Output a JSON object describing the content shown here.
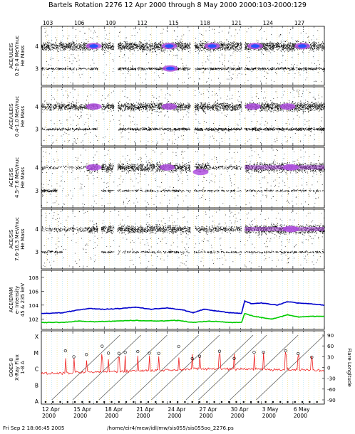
{
  "header": {
    "title": "Bartels Rotation 2276    12 Apr 2000 through 8 May 2000    2000:103-2000:129"
  },
  "footer": {
    "timestamp": "Fri Sep  2 18:06:45 2005",
    "path": "/home/eir4/mew/idl/mw/sis055/sis055oo_2276.ps"
  },
  "colors": {
    "background": "#ffffff",
    "dots": "#000000",
    "mass_band_4": "#b050e0",
    "mass_band_core": "#2850ff",
    "epam_upper": "#0000cc",
    "epam_lower": "#00cc00",
    "goes_flux": "#ee2222",
    "grid_dotted": "#e8d870",
    "grid_day": "#a8e0f0"
  },
  "chart_data": [
    {
      "type": "scatter",
      "ylabel": "ACE/ULEIS\n0.2-0.4 MeV/nuc\nHe Mass",
      "yticks": [
        "4",
        "3"
      ],
      "doy_labels": [
        "103",
        "106",
        "109",
        "112",
        "115",
        "118",
        "121",
        "124",
        "127"
      ],
      "gaps_doy": [
        [
          108.35,
          108.7
        ],
        [
          109.9,
          110.25
        ],
        [
          117.2,
          117.55
        ],
        [
          122.1,
          122.35
        ]
      ],
      "bands": [
        {
          "mass": 4.0,
          "segments": [
            [
              103,
              108.4,
              0.9
            ],
            [
              108.7,
              109.9,
              0.9
            ],
            [
              110.3,
              117.2,
              1.0
            ],
            [
              117.6,
              122.1,
              1.0
            ],
            [
              122.4,
              130,
              1.0
            ]
          ]
        },
        {
          "mass": 3.0,
          "segments": [
            [
              103,
              108.4,
              0.25
            ],
            [
              110.3,
              117.2,
              0.4
            ],
            [
              117.6,
              130,
              0.35
            ]
          ]
        }
      ],
      "blobs_doy": [
        [
          108.0,
          4.0
        ],
        [
          115.2,
          4.0
        ],
        [
          115.3,
          3.0
        ],
        [
          119.3,
          4.0
        ],
        [
          123.4,
          4.0
        ],
        [
          127.9,
          4.0
        ]
      ]
    },
    {
      "type": "scatter",
      "ylabel": "ACE/ULEIS\n0.4-1.0 MeV/nuc\nHe Mass",
      "yticks": [
        "4",
        "3"
      ],
      "bands": [
        {
          "mass": 4.0,
          "segments": [
            [
              103,
              108.4,
              0.7
            ],
            [
              108.7,
              109.9,
              0.7
            ],
            [
              110.3,
              117.2,
              0.9
            ],
            [
              117.6,
              122.1,
              0.9
            ],
            [
              122.4,
              130,
              1.0
            ]
          ]
        },
        {
          "mass": 3.0,
          "segments": [
            [
              103,
              108.4,
              0.3
            ],
            [
              110.3,
              117.2,
              0.4
            ],
            [
              117.6,
              130,
              0.5
            ]
          ]
        }
      ],
      "blobs_doy": [
        [
          108.0,
          4.0
        ],
        [
          115.2,
          4.0
        ],
        [
          123.2,
          4.0
        ],
        [
          126.5,
          4.0
        ]
      ]
    },
    {
      "type": "scatter",
      "ylabel": "ACE/SIS\n4.5-7.6 MeV/nuc\nHe Mass",
      "yticks": [
        "4",
        "3"
      ],
      "bands": [
        {
          "mass": 4.0,
          "segments": [
            [
              103,
              107.3,
              0.2
            ],
            [
              107.3,
              117.2,
              0.9
            ],
            [
              117.6,
              119.0,
              0.9
            ],
            [
              119.0,
              122.1,
              0.3
            ],
            [
              122.4,
              130,
              1.0
            ]
          ]
        },
        {
          "mass": 3.0,
          "segments": [
            [
              103,
              104.5,
              0.5
            ],
            [
              108.5,
              130,
              0.2
            ]
          ]
        }
      ],
      "blobs_doy": [
        [
          108.0,
          4.0
        ],
        [
          115.0,
          4.0
        ],
        [
          118.2,
          3.8
        ],
        [
          126.8,
          4.0
        ]
      ]
    },
    {
      "type": "scatter",
      "ylabel": "ACE/SIS\n7.6-16.3 MeV/nuc\nHe Mass",
      "yticks": [
        "4",
        "3"
      ],
      "bands": [
        {
          "mass": 4.0,
          "segments": [
            [
              103,
              107.3,
              0.3
            ],
            [
              107.3,
              117.2,
              0.8
            ],
            [
              117.6,
              122.1,
              0.5
            ],
            [
              122.4,
              130,
              1.0
            ]
          ]
        },
        {
          "mass": 3.0,
          "segments": [
            [
              103,
              105.0,
              0.3
            ],
            [
              108.5,
              130,
              0.2
            ]
          ]
        }
      ],
      "blobs_doy": [
        [
          126.8,
          4.0
        ]
      ]
    },
    {
      "type": "line",
      "ylabel": "ACE/EPAM\ne- Intensity\n45 & 235 keV",
      "ytick_labels": [
        "10^8",
        "10^6",
        "10^4",
        "10^2"
      ],
      "ylim_log10": [
        0.5,
        9.0
      ],
      "series_upper_log10": [
        [
          103.0,
          2.8
        ],
        [
          105.0,
          2.9
        ],
        [
          106.5,
          3.3
        ],
        [
          107.5,
          3.5
        ],
        [
          109.0,
          3.4
        ],
        [
          110.5,
          3.5
        ],
        [
          112.0,
          3.7
        ],
        [
          113.5,
          3.4
        ],
        [
          115.0,
          3.6
        ],
        [
          116.5,
          3.3
        ],
        [
          117.5,
          2.9
        ],
        [
          118.5,
          3.4
        ],
        [
          119.5,
          3.2
        ],
        [
          121.0,
          2.9
        ],
        [
          122.1,
          2.8
        ],
        [
          122.4,
          4.6
        ],
        [
          123.0,
          4.2
        ],
        [
          124.0,
          4.3
        ],
        [
          125.5,
          4.0
        ],
        [
          126.5,
          4.5
        ],
        [
          127.5,
          4.3
        ],
        [
          128.5,
          4.2
        ],
        [
          130.0,
          4.0
        ]
      ],
      "series_lower_log10": [
        [
          103.0,
          1.5
        ],
        [
          105.0,
          1.5
        ],
        [
          106.5,
          1.7
        ],
        [
          108.0,
          1.6
        ],
        [
          110.0,
          1.7
        ],
        [
          112.0,
          1.8
        ],
        [
          114.0,
          1.7
        ],
        [
          116.0,
          1.8
        ],
        [
          117.5,
          1.5
        ],
        [
          119.0,
          1.7
        ],
        [
          121.0,
          1.5
        ],
        [
          122.1,
          1.5
        ],
        [
          122.4,
          2.8
        ],
        [
          123.0,
          2.5
        ],
        [
          124.0,
          2.2
        ],
        [
          125.0,
          2.0
        ],
        [
          126.5,
          2.6
        ],
        [
          127.5,
          2.3
        ],
        [
          129.0,
          2.4
        ],
        [
          130.0,
          2.4
        ]
      ]
    },
    {
      "type": "line",
      "ylabel": "GOES-8\nX-Ray Flux\n1-8 A",
      "left_ticks": [
        "X",
        "M",
        "C",
        "B",
        "A"
      ],
      "right_ylabel": "Flare Longitude",
      "right_ticks": [
        "90",
        "60",
        "30",
        "0",
        "-30",
        "-60",
        "-90"
      ],
      "x_tick_labels": [
        {
          "date": "12 Apr",
          "year": "2000"
        },
        {
          "date": "15 Apr",
          "year": "2000"
        },
        {
          "date": "18 Apr",
          "year": "2000"
        },
        {
          "date": "21 Apr",
          "year": "2000"
        },
        {
          "date": "24 Apr",
          "year": "2000"
        },
        {
          "date": "27 Apr",
          "year": "2000"
        },
        {
          "date": "30 Apr",
          "year": "2000"
        },
        {
          "date": "3 May",
          "year": "2000"
        },
        {
          "date": "6 May",
          "year": "2000"
        }
      ],
      "flux_level_log": [
        [
          103.0,
          -6.3
        ],
        [
          108.0,
          -6.2
        ],
        [
          113.0,
          -6.1
        ],
        [
          118.0,
          -6.0
        ],
        [
          123.0,
          -6.0
        ],
        [
          130.0,
          -6.1
        ]
      ],
      "flare_spikes_doy": [
        105.3,
        106.1,
        107.3,
        108.8,
        109.4,
        110.4,
        111.0,
        112.2,
        113.3,
        114.2,
        116.1,
        117.4,
        118.1,
        120.0,
        121.4,
        123.3,
        124.2,
        126.3,
        127.5,
        128.8
      ],
      "longitude_tracks": [
        [
          104.0,
          -90,
          110.5,
          90
        ],
        [
          106.0,
          -90,
          112.5,
          90
        ],
        [
          108.5,
          -90,
          115.0,
          90
        ],
        [
          111.5,
          -90,
          118.0,
          90
        ],
        [
          113.5,
          -90,
          120.0,
          90
        ],
        [
          116.8,
          -90,
          123.2,
          90
        ],
        [
          118.0,
          -90,
          124.5,
          90
        ],
        [
          121.0,
          -90,
          127.5,
          90
        ],
        [
          123.5,
          -90,
          130.0,
          90
        ]
      ]
    }
  ]
}
